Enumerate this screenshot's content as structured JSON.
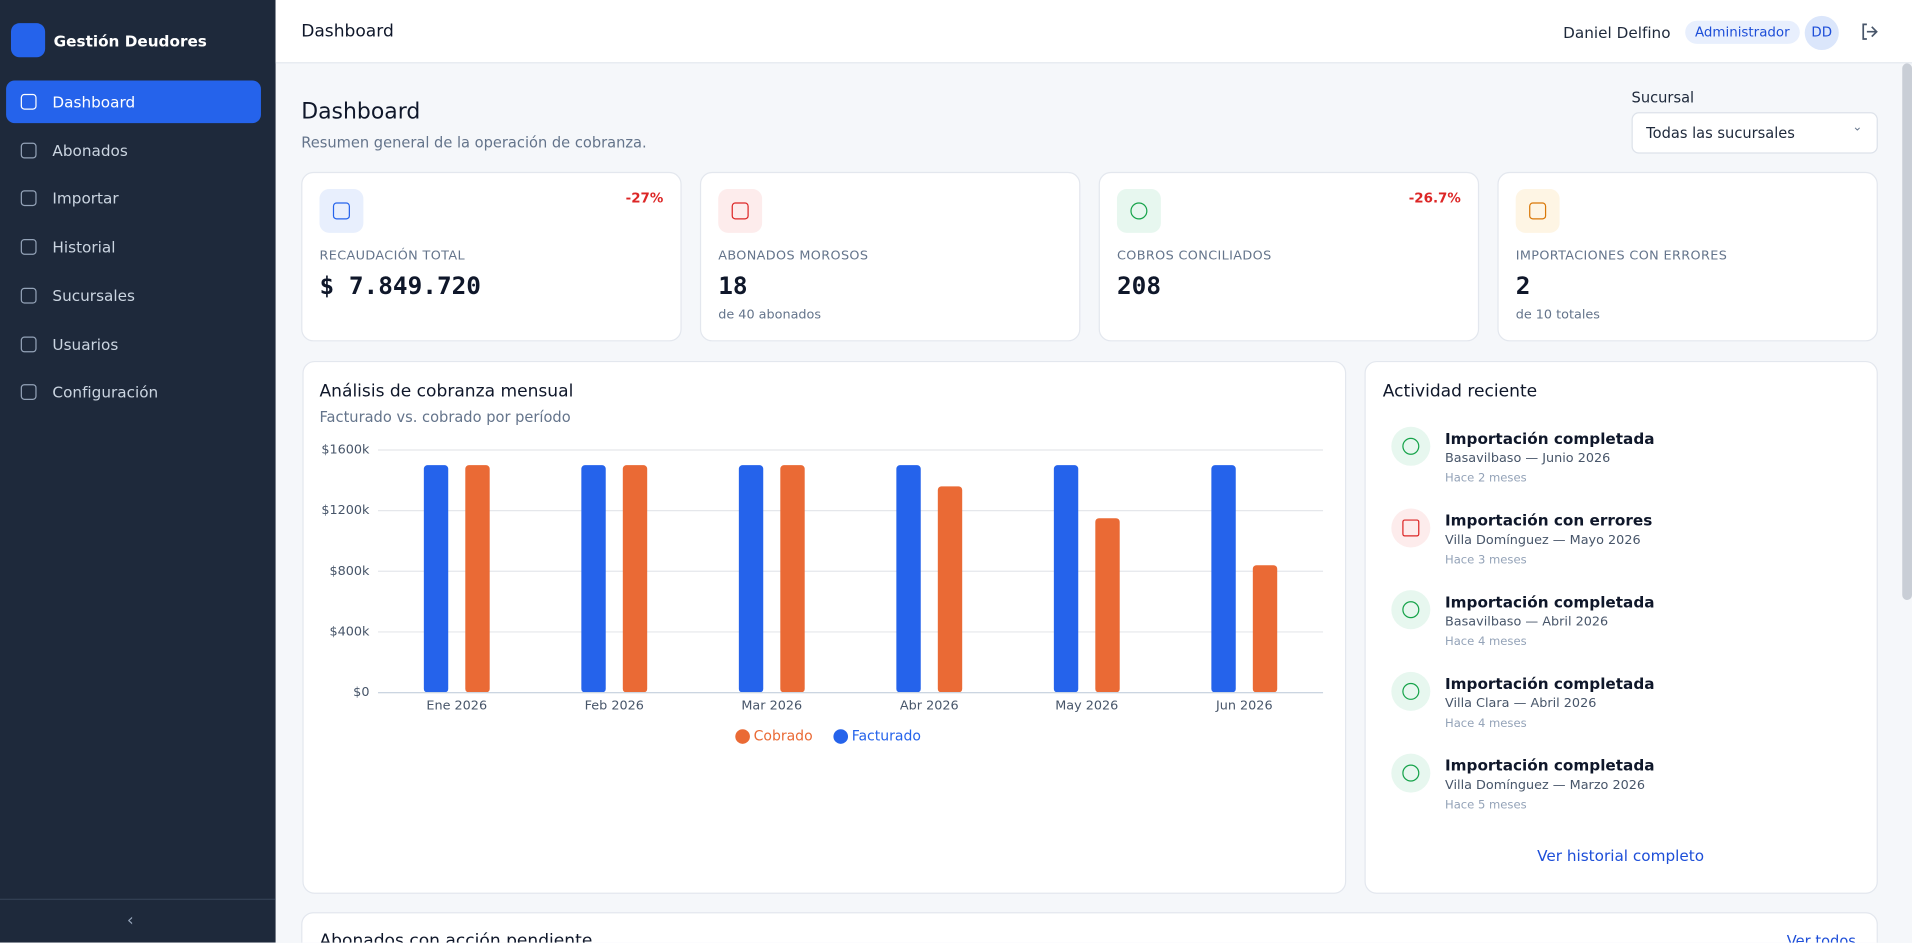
{
  "sidebar": {
    "brand": "Gestión Deudores",
    "nav": [
      "Dashboard",
      "Abonados",
      "Importar",
      "Historial",
      "Sucursales",
      "Usuarios",
      "Configuración"
    ]
  },
  "header": {
    "title": "Dashboard",
    "user": "Daniel Delfino",
    "role": "Administrador",
    "initials": "DD"
  },
  "page": {
    "title": "Dashboard",
    "subtitle": "Resumen general de la operación de cobranza.",
    "filter_label": "Sucursal",
    "filter_value": "Todas las sucursales"
  },
  "kpis": [
    {
      "label": "RECAUDACIÓN TOTAL",
      "value": "$ 7.849.720",
      "change": "-27%"
    },
    {
      "label": "ABONADOS MOROSOS",
      "value": "18",
      "note": "de 40 abonados"
    },
    {
      "label": "COBROS CONCILIADOS",
      "value": "208",
      "change": "-26.7%"
    },
    {
      "label": "IMPORTACIONES CON ERRORES",
      "value": "2",
      "note": "de 10 totales"
    }
  ],
  "chart_data": {
    "type": "bar",
    "title": "Análisis de cobranza mensual",
    "subtitle": "Facturado vs. cobrado por período",
    "categories": [
      "Ene 2026",
      "Feb 2026",
      "Mar 2026",
      "Abr 2026",
      "May 2026",
      "Jun 2026"
    ],
    "series": [
      {
        "name": "Cobrado",
        "color": "#ea6a35",
        "values": [
          1500000,
          1500000,
          1500000,
          1360000,
          1150000,
          840000
        ]
      },
      {
        "name": "Facturado",
        "color": "#2563eb",
        "values": [
          1500000,
          1500000,
          1500000,
          1500000,
          1500000,
          1500000
        ]
      }
    ],
    "ylim": [
      0,
      1600000
    ],
    "yticks": [
      {
        "value": 0,
        "label": "$0"
      },
      {
        "value": 400000,
        "label": "$400k"
      },
      {
        "value": 800000,
        "label": "$800k"
      },
      {
        "value": 1200000,
        "label": "$1200k"
      },
      {
        "value": 1600000,
        "label": "$1600k"
      }
    ],
    "grid": true
  },
  "activity": {
    "title": "Actividad reciente",
    "items": [
      {
        "status": "ok",
        "title": "Importación completada",
        "detail": "Basavilbaso — Junio 2026",
        "time": "Hace 2 meses"
      },
      {
        "status": "error",
        "title": "Importación con errores",
        "detail": "Villa Domínguez — Mayo 2026",
        "time": "Hace 3 meses"
      },
      {
        "status": "ok",
        "title": "Importación completada",
        "detail": "Basavilbaso — Abril 2026",
        "time": "Hace 4 meses"
      },
      {
        "status": "ok",
        "title": "Importación completada",
        "detail": "Villa Clara — Abril 2026",
        "time": "Hace 4 meses"
      },
      {
        "status": "ok",
        "title": "Importación completada",
        "detail": "Villa Domínguez — Marzo 2026",
        "time": "Hace 5 meses"
      }
    ],
    "link": "Ver historial completo"
  },
  "pending": {
    "title": "Abonados con acción pendiente",
    "link": "Ver todos"
  }
}
